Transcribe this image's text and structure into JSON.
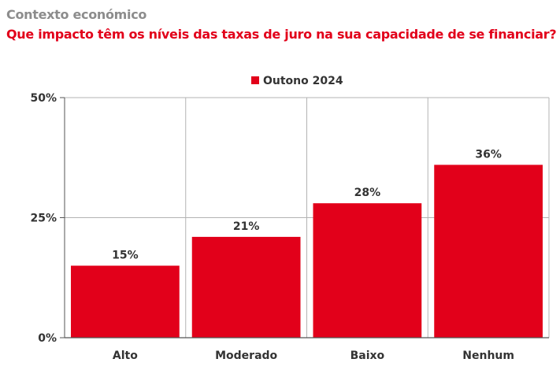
{
  "header": {
    "kicker": "Contexto económico",
    "headline": "Que impacto têm os níveis das taxas de juro na sua capacidade de se financiar?"
  },
  "colors": {
    "accent": "#e2001a",
    "kicker": "#8c8c8c",
    "grid": "#b3b3b3",
    "axis": "#555555",
    "text": "#333333"
  },
  "chart_data": {
    "type": "bar",
    "categories": [
      "Alto",
      "Moderado",
      "Baixo",
      "Nenhum"
    ],
    "series": [
      {
        "name": "Outono 2024",
        "values": [
          15,
          21,
          28,
          36
        ],
        "color": "#e2001a"
      }
    ],
    "value_labels": [
      "15%",
      "21%",
      "28%",
      "36%"
    ],
    "ylim": [
      0,
      50
    ],
    "yticks": [
      0,
      25,
      50
    ],
    "ytick_labels": [
      "0%",
      "25%",
      "50%"
    ],
    "grid": true,
    "legend_position": "top-center",
    "xlabel": "",
    "ylabel": ""
  }
}
